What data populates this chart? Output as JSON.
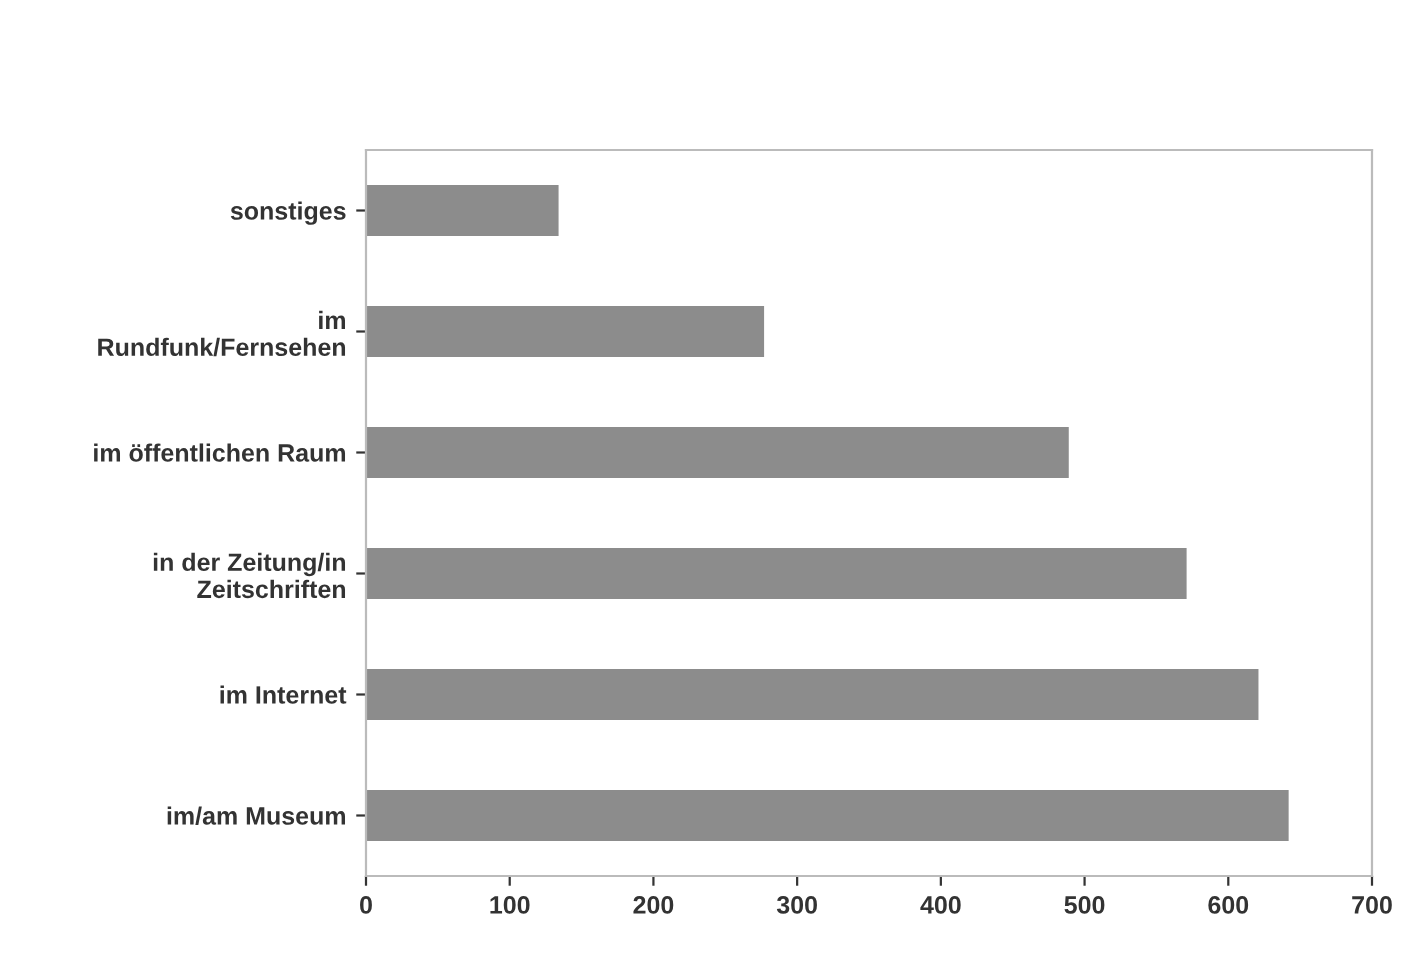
{
  "chart_data": {
    "type": "bar",
    "orientation": "horizontal",
    "categories": [
      "sonstiges",
      "im\nRundfunk/Fernsehen",
      "im öffentlichen Raum",
      "in der Zeitung/in\nZeitschriften",
      "im Internet",
      "im/am Museum"
    ],
    "values": [
      134,
      277,
      489,
      571,
      621,
      642
    ],
    "color": "#8c8c8c",
    "xlim": [
      0,
      700
    ],
    "xticks": [
      0,
      100,
      200,
      300,
      400,
      500,
      600,
      700
    ],
    "grid": false,
    "legend": false
  }
}
